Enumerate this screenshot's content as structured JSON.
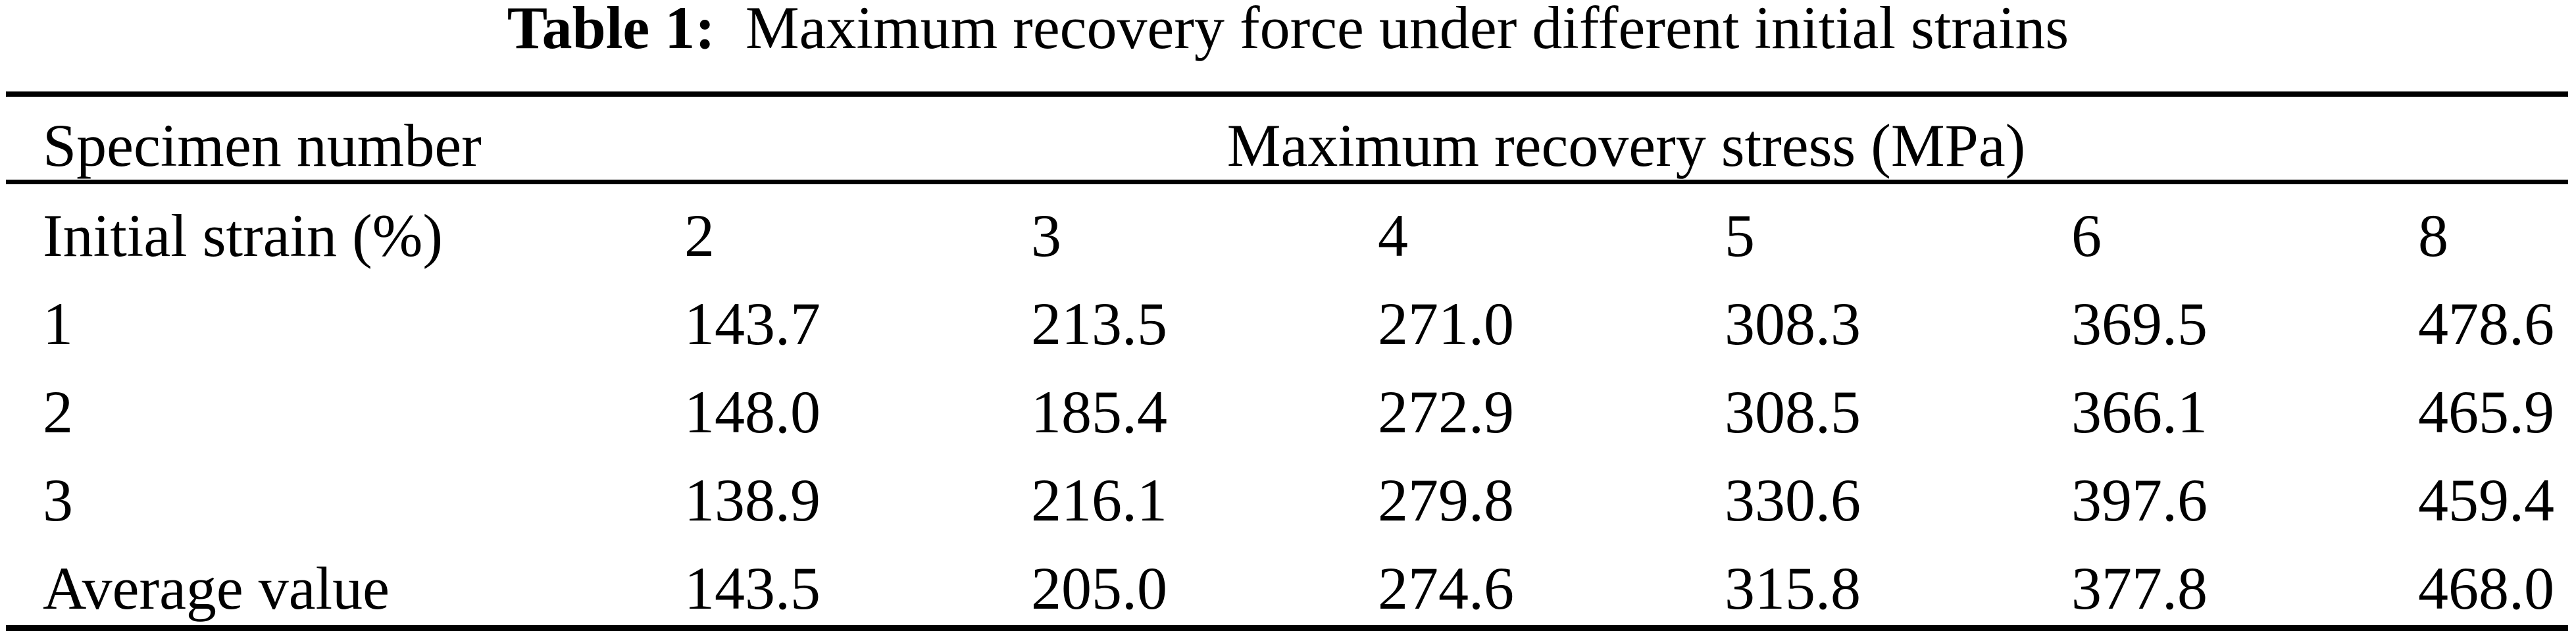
{
  "caption": {
    "label": "Table 1:",
    "text": "Maximum recovery force under different initial strains"
  },
  "table": {
    "header": {
      "specimen": "Specimen number",
      "stress": "Maximum recovery stress (MPa)"
    },
    "subheader": {
      "label": "Initial strain (%)",
      "strains": [
        "2",
        "3",
        "4",
        "5",
        "6",
        "8"
      ]
    },
    "rows": [
      {
        "label": "1",
        "values": [
          "143.7",
          "213.5",
          "271.0",
          "308.3",
          "369.5",
          "478.6"
        ]
      },
      {
        "label": "2",
        "values": [
          "148.0",
          "185.4",
          "272.9",
          "308.5",
          "366.1",
          "465.9"
        ]
      },
      {
        "label": "3",
        "values": [
          "138.9",
          "216.1",
          "279.8",
          "330.6",
          "397.6",
          "459.4"
        ]
      },
      {
        "label": "Average value",
        "values": [
          "143.5",
          "205.0",
          "274.6",
          "315.8",
          "377.8",
          "468.0"
        ]
      }
    ]
  },
  "chart_data": {
    "type": "table",
    "title": "Table 1: Maximum recovery force under different initial strains",
    "row_header": "Specimen number",
    "column_group_header": "Maximum recovery stress (MPa)",
    "initial_strain_percent": [
      2,
      3,
      4,
      5,
      6,
      8
    ],
    "specimens": [
      {
        "specimen": "1",
        "max_recovery_stress_MPa": [
          143.7,
          213.5,
          271.0,
          308.3,
          369.5,
          478.6
        ]
      },
      {
        "specimen": "2",
        "max_recovery_stress_MPa": [
          148.0,
          185.4,
          272.9,
          308.5,
          366.1,
          465.9
        ]
      },
      {
        "specimen": "3",
        "max_recovery_stress_MPa": [
          138.9,
          216.1,
          279.8,
          330.6,
          397.6,
          459.4
        ]
      },
      {
        "specimen": "Average value",
        "max_recovery_stress_MPa": [
          143.5,
          205.0,
          274.6,
          315.8,
          377.8,
          468.0
        ]
      }
    ],
    "layout": {
      "grid": "horizontal rules only (top, under header, bottom)",
      "alignment": "left-aligned columns"
    }
  }
}
